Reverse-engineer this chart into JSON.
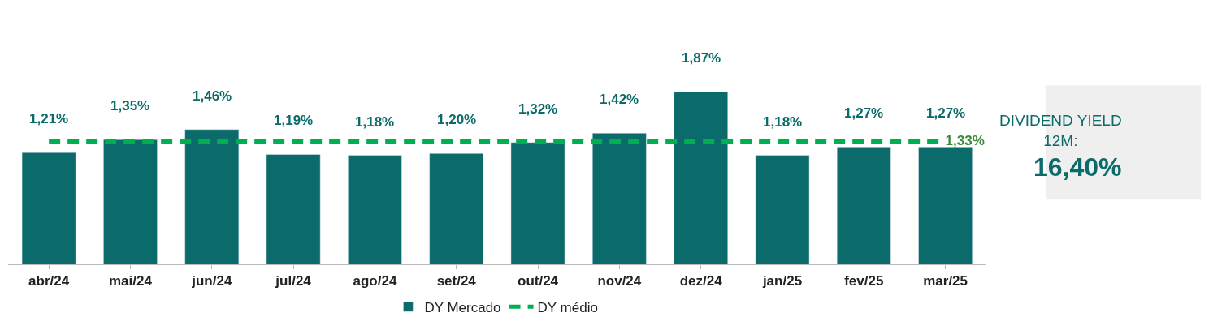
{
  "chart_data": {
    "type": "bar",
    "categories": [
      "abr/24",
      "mai/24",
      "jun/24",
      "jul/24",
      "ago/24",
      "set/24",
      "out/24",
      "nov/24",
      "dez/24",
      "jan/25",
      "fev/25",
      "mar/25"
    ],
    "series": [
      {
        "name": "DY Mercado",
        "color": "#0b6a6a",
        "values": [
          1.21,
          1.35,
          1.46,
          1.19,
          1.18,
          1.2,
          1.32,
          1.42,
          1.87,
          1.18,
          1.27,
          1.27
        ],
        "value_labels": [
          "1,21%",
          "1,35%",
          "1,46%",
          "1,19%",
          "1,18%",
          "1,20%",
          "1,32%",
          "1,42%",
          "1,87%",
          "1,18%",
          "1,27%",
          "1,27%"
        ]
      },
      {
        "name": "DY médio",
        "type": "line",
        "color": "#00b050",
        "line_style": "dashed",
        "values": [
          1.33,
          1.33,
          1.33,
          1.33,
          1.33,
          1.33,
          1.33,
          1.33,
          1.33,
          1.33,
          1.33,
          1.33
        ],
        "value_labels": [
          null,
          null,
          null,
          null,
          null,
          null,
          null,
          null,
          null,
          null,
          null,
          "1,33%"
        ]
      }
    ],
    "annotations": [
      "DIVIDEND YIELD 12M:",
      "16,40%"
    ],
    "tick_labels": "x",
    "legend": "bottom",
    "marker": "none"
  }
}
